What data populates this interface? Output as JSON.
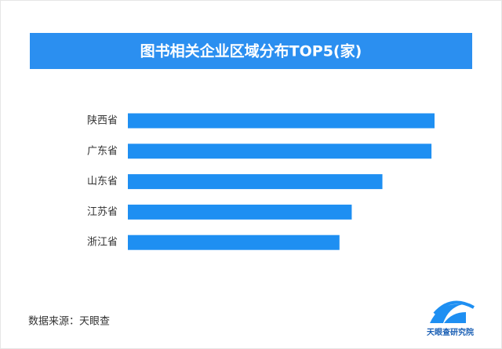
{
  "chart_data": {
    "type": "barh",
    "title": "图书相关企业区域分布TOP5(家)",
    "categories": [
      "陕西省",
      "广东省",
      "山东省",
      "江苏省",
      "浙江省"
    ],
    "values": [
      100,
      99,
      83,
      73,
      69
    ],
    "color": "#1e8ff2"
  },
  "source": "数据来源：天眼查",
  "logo_text": "天眼查研究院"
}
